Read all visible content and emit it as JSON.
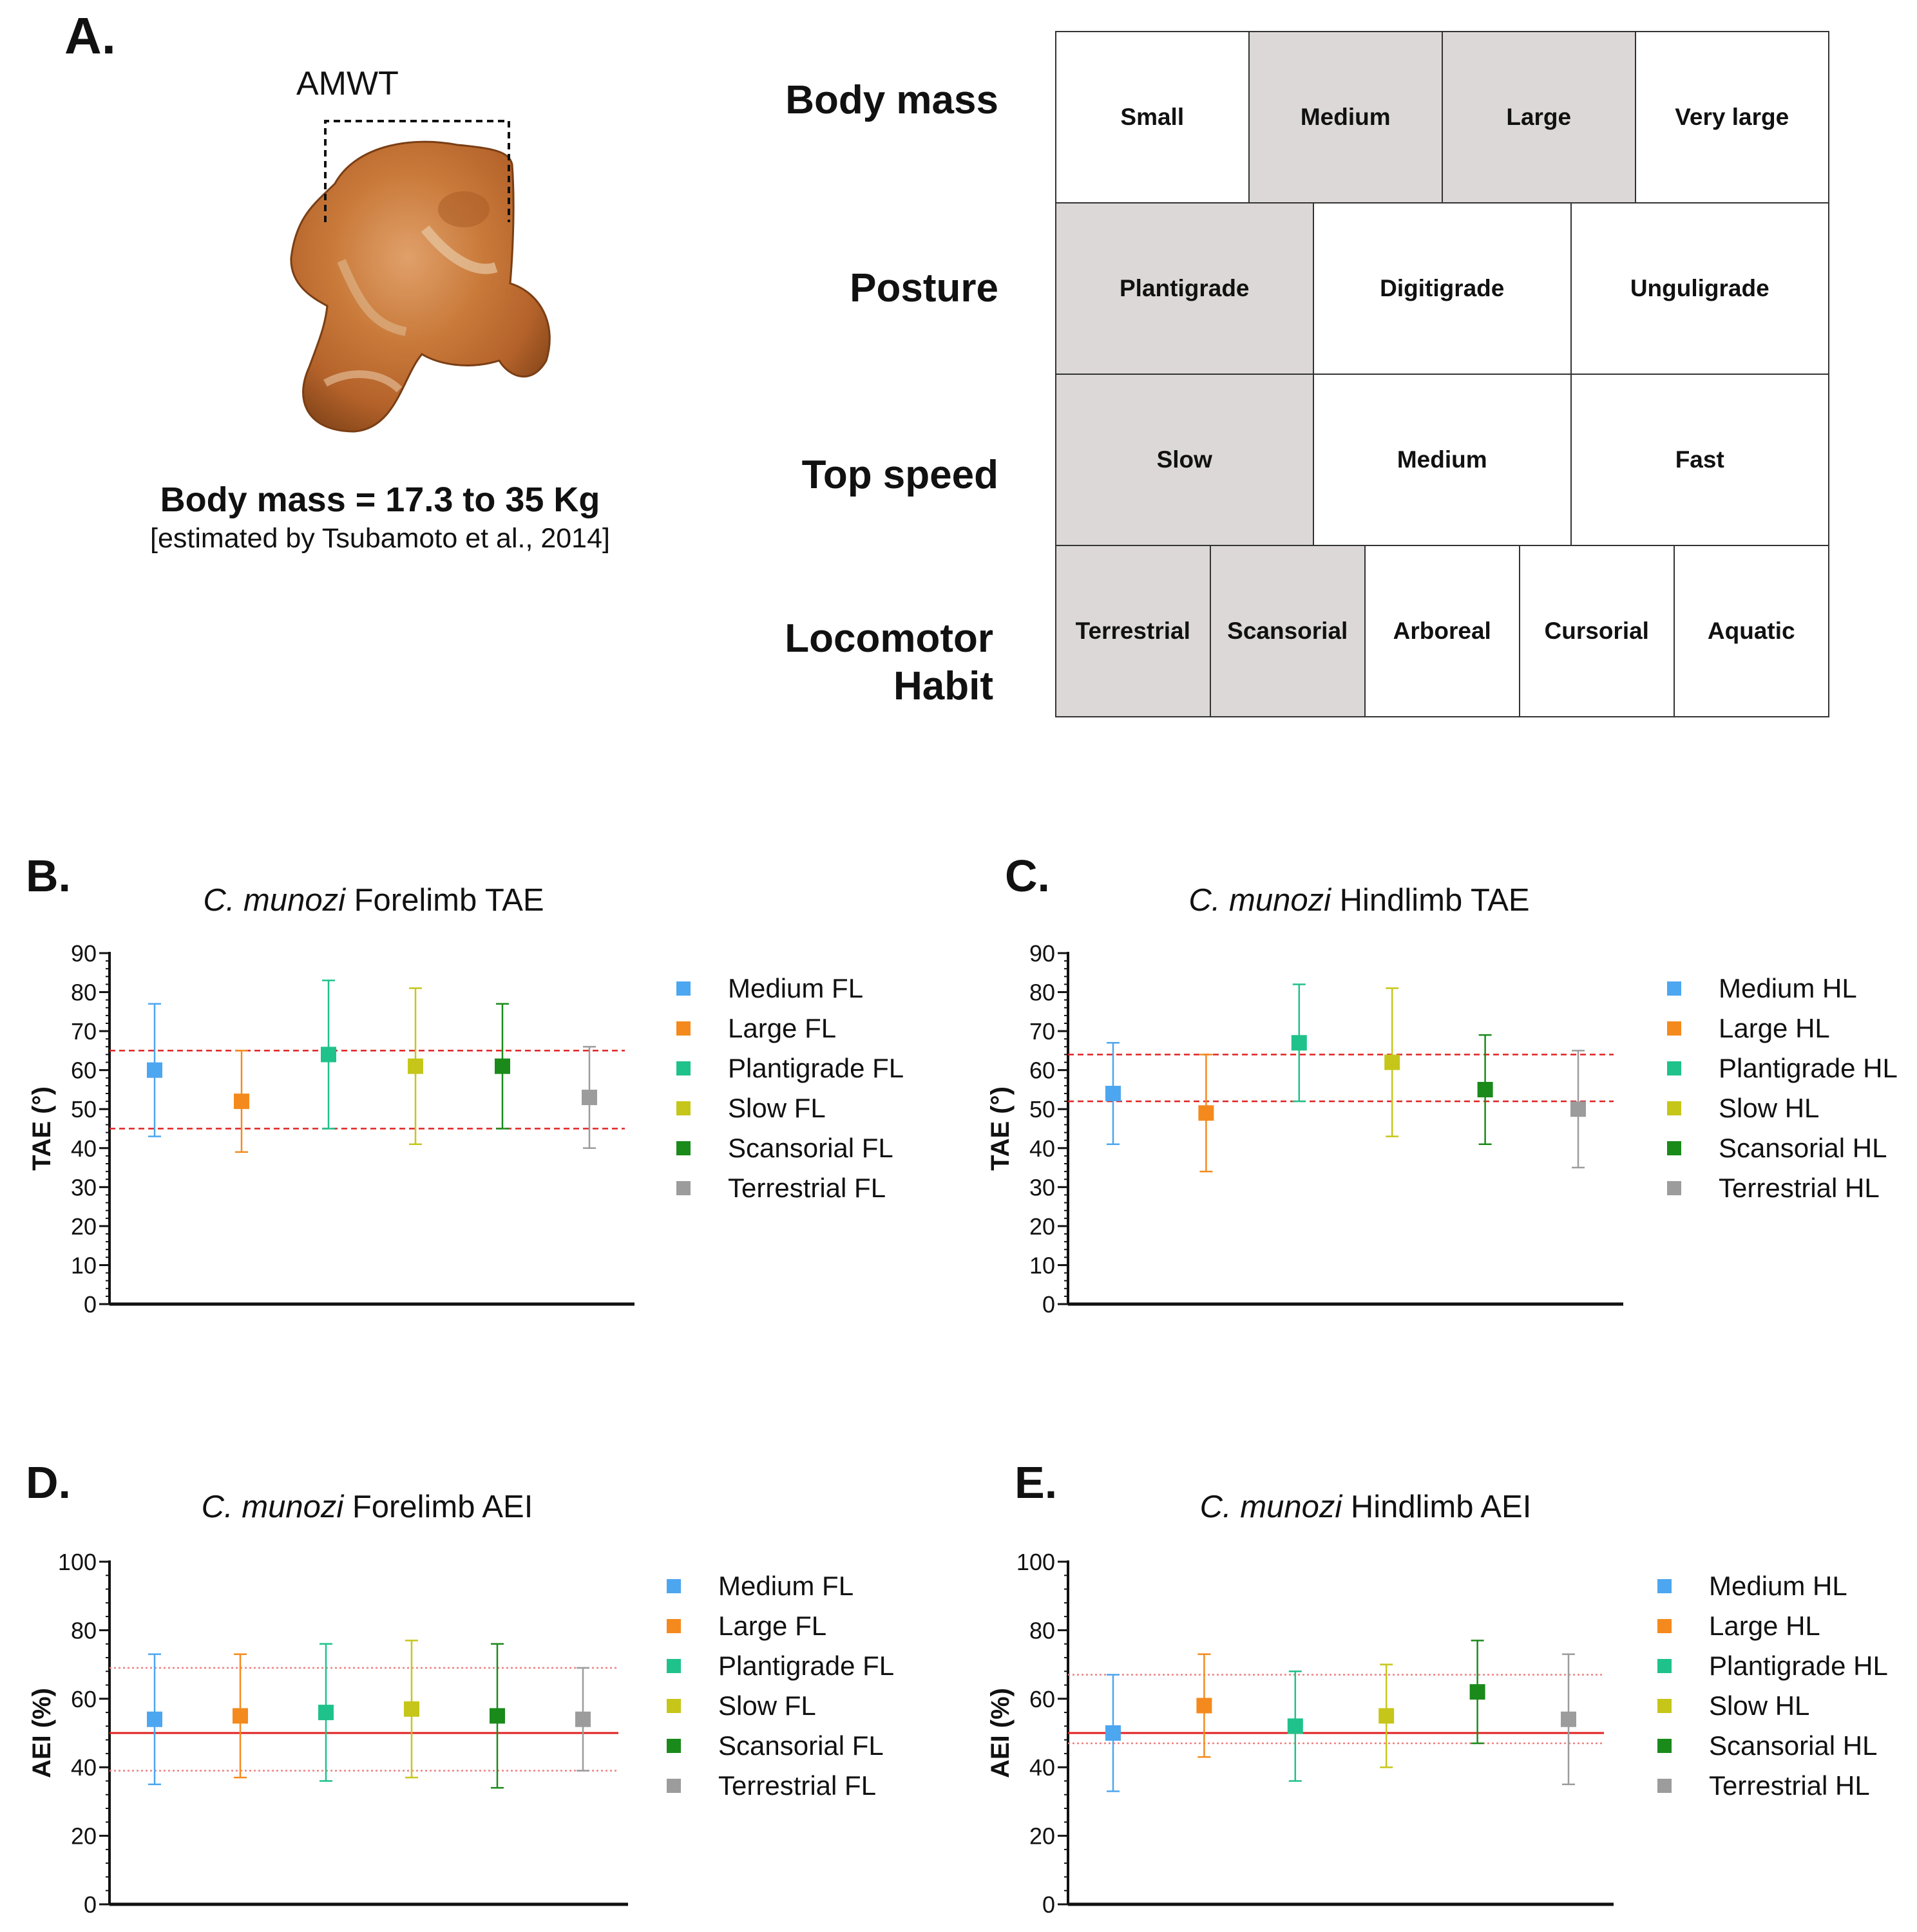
{
  "panelA": {
    "letter": "A.",
    "bone_label": "AMWT",
    "body_mass_text": "Body mass = 17.3 to 35 Kg",
    "citation_text": "[estimated by Tsubamoto et al., 2014]",
    "traits": [
      {
        "label": "Body mass",
        "options": [
          {
            "label": "Small",
            "selected": false
          },
          {
            "label": "Medium",
            "selected": true
          },
          {
            "label": "Large",
            "selected": true
          },
          {
            "label": "Very large",
            "selected": false
          }
        ]
      },
      {
        "label": "Posture",
        "options": [
          {
            "label": "Plantigrade",
            "selected": true
          },
          {
            "label": "Digitigrade",
            "selected": false
          },
          {
            "label": "Unguligrade",
            "selected": false
          }
        ]
      },
      {
        "label": "Top speed",
        "options": [
          {
            "label": "Slow",
            "selected": true
          },
          {
            "label": "Medium",
            "selected": false
          },
          {
            "label": "Fast",
            "selected": false
          }
        ]
      },
      {
        "label": "Locomotor Habit",
        "options": [
          {
            "label": "Terrestrial",
            "selected": true
          },
          {
            "label": "Scansorial",
            "selected": true
          },
          {
            "label": "Arboreal",
            "selected": false
          },
          {
            "label": "Cursorial",
            "selected": false
          },
          {
            "label": "Aquatic",
            "selected": false
          }
        ]
      }
    ]
  },
  "chart_data": [
    {
      "panel": "B.",
      "type": "scatter",
      "title_species": "C. munozi",
      "title_rest": "Forelimb TAE",
      "ylabel": "TAE (°)",
      "ylim": [
        0,
        90
      ],
      "yticks": [
        0,
        10,
        20,
        30,
        40,
        50,
        60,
        70,
        80,
        90
      ],
      "points": [
        {
          "label": "Medium FL",
          "color": "#4da6f0",
          "mean": 60,
          "low": 43,
          "high": 77
        },
        {
          "label": "Large FL",
          "color": "#f48a1e",
          "mean": 52,
          "low": 39,
          "high": 65
        },
        {
          "label": "Plantigrade FL",
          "color": "#1fc28a",
          "mean": 64,
          "low": 45,
          "high": 83
        },
        {
          "label": "Slow FL",
          "color": "#c6c61a",
          "mean": 61,
          "low": 41,
          "high": 81
        },
        {
          "label": "Scansorial FL",
          "color": "#1a8a1a",
          "mean": 61,
          "low": 45,
          "high": 77
        },
        {
          "label": "Terrestrial FL",
          "color": "#9c9c9c",
          "mean": 53,
          "low": 40,
          "high": 66
        }
      ],
      "reference_lines": [
        {
          "value": 65,
          "style": "dashed",
          "color": "#e02020"
        },
        {
          "value": 45,
          "style": "dashed",
          "color": "#e02020"
        }
      ]
    },
    {
      "panel": "C.",
      "type": "scatter",
      "title_species": "C. munozi",
      "title_rest": "Hindlimb TAE",
      "ylabel": "TAE (°)",
      "ylim": [
        0,
        90
      ],
      "yticks": [
        0,
        10,
        20,
        30,
        40,
        50,
        60,
        70,
        80,
        90
      ],
      "points": [
        {
          "label": "Medium HL",
          "color": "#4da6f0",
          "mean": 54,
          "low": 41,
          "high": 67
        },
        {
          "label": "Large HL",
          "color": "#f48a1e",
          "mean": 49,
          "low": 34,
          "high": 64
        },
        {
          "label": "Plantigrade HL",
          "color": "#1fc28a",
          "mean": 67,
          "low": 52,
          "high": 82
        },
        {
          "label": "Slow HL",
          "color": "#c6c61a",
          "mean": 62,
          "low": 43,
          "high": 81
        },
        {
          "label": "Scansorial HL",
          "color": "#1a8a1a",
          "mean": 55,
          "low": 41,
          "high": 69
        },
        {
          "label": "Terrestrial HL",
          "color": "#9c9c9c",
          "mean": 50,
          "low": 35,
          "high": 65
        }
      ],
      "reference_lines": [
        {
          "value": 64,
          "style": "dashed",
          "color": "#e02020"
        },
        {
          "value": 52,
          "style": "dashed",
          "color": "#e02020"
        }
      ]
    },
    {
      "panel": "D.",
      "type": "scatter",
      "title_species": "C. munozi",
      "title_rest": "Forelimb AEI",
      "ylabel": "AEI (%)",
      "ylim": [
        0,
        100
      ],
      "yticks": [
        0,
        20,
        40,
        60,
        80,
        100
      ],
      "points": [
        {
          "label": "Medium FL",
          "color": "#4da6f0",
          "mean": 54,
          "low": 35,
          "high": 73
        },
        {
          "label": "Large FL",
          "color": "#f48a1e",
          "mean": 55,
          "low": 37,
          "high": 73
        },
        {
          "label": "Plantigrade FL",
          "color": "#1fc28a",
          "mean": 56,
          "low": 36,
          "high": 76
        },
        {
          "label": "Slow FL",
          "color": "#c6c61a",
          "mean": 57,
          "low": 37,
          "high": 77
        },
        {
          "label": "Scansorial FL",
          "color": "#1a8a1a",
          "mean": 55,
          "low": 34,
          "high": 76
        },
        {
          "label": "Terrestrial FL",
          "color": "#9c9c9c",
          "mean": 54,
          "low": 39,
          "high": 69
        }
      ],
      "reference_lines": [
        {
          "value": 50,
          "style": "solid",
          "color": "#e02020"
        },
        {
          "value": 69,
          "style": "dotted",
          "color": "#f08080"
        },
        {
          "value": 39,
          "style": "dotted",
          "color": "#f08080"
        }
      ]
    },
    {
      "panel": "E.",
      "type": "scatter",
      "title_species": "C. munozi",
      "title_rest": "Hindlimb AEI",
      "ylabel": "AEI (%)",
      "ylim": [
        0,
        100
      ],
      "yticks": [
        0,
        20,
        40,
        60,
        80,
        100
      ],
      "points": [
        {
          "label": "Medium HL",
          "color": "#4da6f0",
          "mean": 50,
          "low": 33,
          "high": 67
        },
        {
          "label": "Large HL",
          "color": "#f48a1e",
          "mean": 58,
          "low": 43,
          "high": 73
        },
        {
          "label": "Plantigrade HL",
          "color": "#1fc28a",
          "mean": 52,
          "low": 36,
          "high": 68
        },
        {
          "label": "Slow HL",
          "color": "#c6c61a",
          "mean": 55,
          "low": 40,
          "high": 70
        },
        {
          "label": "Scansorial HL",
          "color": "#1a8a1a",
          "mean": 62,
          "low": 47,
          "high": 77
        },
        {
          "label": "Terrestrial HL",
          "color": "#9c9c9c",
          "mean": 54,
          "low": 35,
          "high": 73
        }
      ],
      "reference_lines": [
        {
          "value": 50,
          "style": "solid",
          "color": "#e02020"
        },
        {
          "value": 67,
          "style": "dotted",
          "color": "#f08080"
        },
        {
          "value": 47,
          "style": "dotted",
          "color": "#f08080"
        }
      ]
    }
  ]
}
